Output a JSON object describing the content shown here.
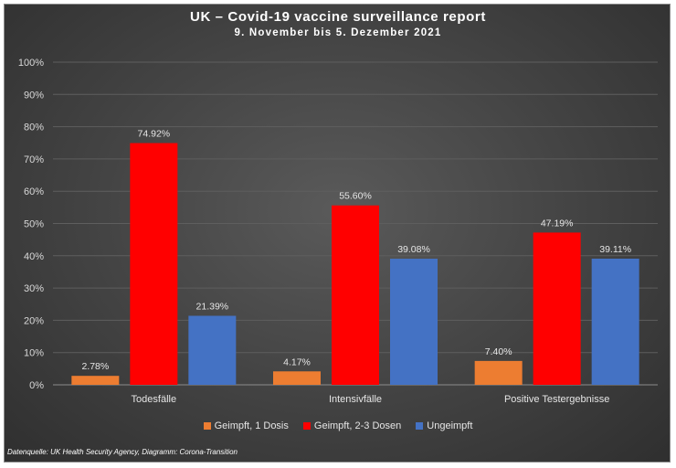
{
  "chart_data": {
    "type": "bar",
    "title": "UK – Covid-19 vaccine surveillance report",
    "subtitle": "9. November bis 5. Dezember 2021",
    "categories": [
      "Todesfälle",
      "Intensivfälle",
      "Positive Testergebnisse"
    ],
    "series": [
      {
        "name": "Geimpft, 1 Dosis",
        "color": "#ed7d31",
        "values": [
          2.78,
          4.17,
          7.4
        ],
        "labels": [
          "2.78%",
          "4.17%",
          "7.40%"
        ]
      },
      {
        "name": "Geimpft, 2-3 Dosen",
        "color": "#ff0000",
        "values": [
          74.92,
          55.6,
          47.19
        ],
        "labels": [
          "74.92%",
          "55.60%",
          "47.19%"
        ]
      },
      {
        "name": "Ungeimpft",
        "color": "#4472c4",
        "values": [
          21.39,
          39.08,
          39.11
        ],
        "labels": [
          "21.39%",
          "39.08%",
          "39.11%"
        ]
      }
    ],
    "yticks": [
      "0%",
      "10%",
      "20%",
      "30%",
      "40%",
      "50%",
      "60%",
      "70%",
      "80%",
      "90%",
      "100%"
    ],
    "ylim": [
      0,
      100
    ],
    "grid": true,
    "legend": "bottom",
    "source": "Datenquelle: UK Health Security Agency, Diagramm: Corona-Transition"
  }
}
